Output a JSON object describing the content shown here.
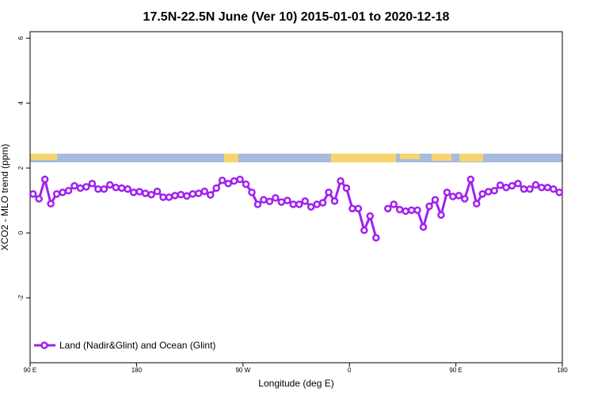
{
  "chart_data": {
    "type": "line",
    "title": "17.5N-22.5N June (Ver 10)   2015-01-01 to 2020-12-18",
    "xlabel": "Longitude (deg E)",
    "ylabel": "XCO2 - MLO trend (ppm)",
    "x": [
      92.5,
      97.5,
      102.5,
      107.5,
      112.5,
      117.5,
      122.5,
      127.5,
      132.5,
      137.5,
      142.5,
      147.5,
      152.5,
      157.5,
      162.5,
      167.5,
      172.5,
      177.5,
      182.5,
      187.5,
      192.5,
      197.5,
      202.5,
      207.5,
      212.5,
      217.5,
      222.5,
      227.5,
      232.5,
      237.5,
      242.5,
      247.5,
      252.5,
      257.5,
      262.5,
      267.5,
      272.5,
      277.5,
      282.5,
      287.5,
      292.5,
      297.5,
      302.5,
      307.5,
      312.5,
      317.5,
      322.5,
      327.5,
      332.5,
      337.5,
      342.5,
      347.5,
      352.5,
      357.5,
      362.5,
      367.5,
      372.5,
      377.5,
      382.5,
      387.5,
      392.5,
      397.5,
      402.5,
      407.5,
      412.5,
      417.5,
      422.5,
      427.5,
      432.5,
      437.5,
      442.5,
      447.5,
      452.5,
      457.5,
      462.5,
      467.5,
      472.5,
      477.5,
      482.5,
      487.5,
      492.5,
      497.5,
      502.5,
      507.5,
      512.5,
      517.5,
      522.5,
      527.5,
      532.5,
      537.5
    ],
    "series": [
      {
        "name": "Land (Nadir&Glint) and Ocean (Glint)",
        "color": "#a020f0",
        "values": [
          1.2,
          1.05,
          1.65,
          0.9,
          1.2,
          1.25,
          1.3,
          1.45,
          1.38,
          1.42,
          1.52,
          1.35,
          1.35,
          1.48,
          1.4,
          1.38,
          1.35,
          1.25,
          1.27,
          1.22,
          1.18,
          1.28,
          1.1,
          1.1,
          1.15,
          1.18,
          1.14,
          1.2,
          1.22,
          1.28,
          1.17,
          1.38,
          1.62,
          1.52,
          1.6,
          1.65,
          1.5,
          1.25,
          0.88,
          1.02,
          0.97,
          1.08,
          0.95,
          1.0,
          0.88,
          0.88,
          0.98,
          0.8,
          0.88,
          0.93,
          1.25,
          0.98,
          1.6,
          1.38,
          0.75,
          0.75,
          0.08,
          0.52,
          -0.15,
          null,
          0.75,
          0.88,
          0.72,
          0.67,
          0.7,
          0.7,
          0.18,
          0.82,
          1.02,
          0.55,
          1.25,
          1.12,
          1.15,
          1.05,
          1.65,
          0.9,
          1.2,
          1.27,
          1.3,
          1.47,
          1.4,
          1.45,
          1.52,
          1.35,
          1.35,
          1.48,
          1.4,
          1.4,
          1.35,
          1.25
        ]
      }
    ],
    "xlim": [
      90,
      540
    ],
    "xticks": [
      {
        "value": 90,
        "label": "90 E"
      },
      180,
      {
        "value": 270,
        "label": "90 W"
      },
      {
        "value": 360,
        "label": "0"
      },
      {
        "value": 450,
        "label": "90 E"
      },
      {
        "value": 540,
        "label": "180"
      }
    ],
    "ylim": [
      -4.0,
      6.2
    ],
    "yticks": [
      -2,
      0,
      2,
      4,
      6
    ],
    "legend": "bottom-left"
  }
}
